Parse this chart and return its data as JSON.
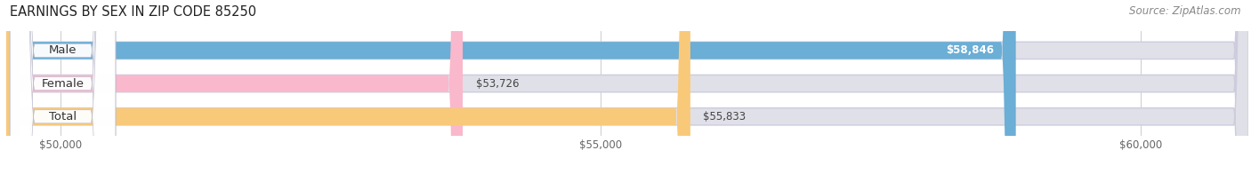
{
  "title": "EARNINGS BY SEX IN ZIP CODE 85250",
  "source": "Source: ZipAtlas.com",
  "categories": [
    "Male",
    "Female",
    "Total"
  ],
  "values": [
    58846,
    53726,
    55833
  ],
  "bar_colors": [
    "#6baed6",
    "#f9b8cc",
    "#f9c97a"
  ],
  "bar_bg_color": "#e0e0e8",
  "xmin": 49500,
  "xmax": 61000,
  "xticks": [
    50000,
    55000,
    60000
  ],
  "xtick_labels": [
    "$50,000",
    "$55,000",
    "$60,000"
  ],
  "title_fontsize": 10.5,
  "label_fontsize": 9.5,
  "value_fontsize": 8.5,
  "source_fontsize": 8.5,
  "fig_bg_color": "#ffffff",
  "bar_height": 0.52
}
